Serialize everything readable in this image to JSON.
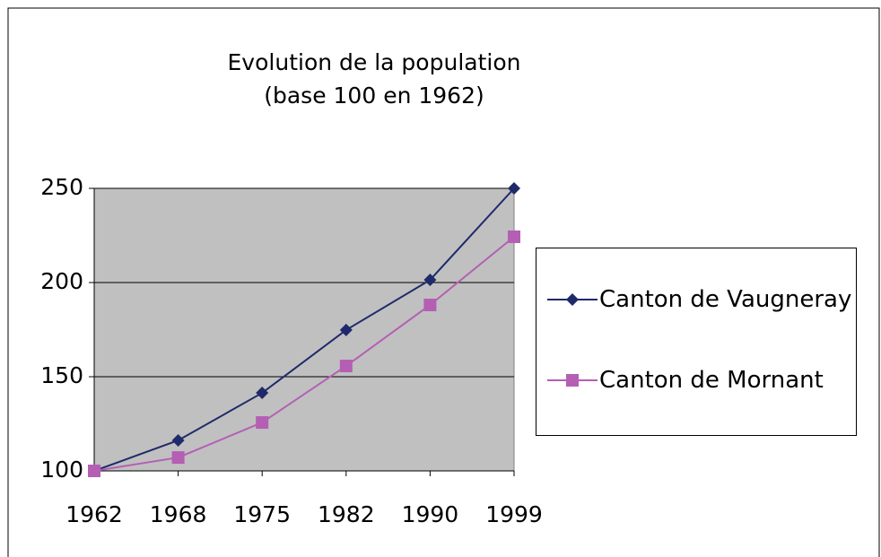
{
  "chart_data": {
    "type": "line",
    "title": "Evolution de la population",
    "subtitle": "(base 100 en 1962)",
    "categories": [
      "1962",
      "1968",
      "1975",
      "1982",
      "1990",
      "1999"
    ],
    "series": [
      {
        "name": "Canton de Vaugneray",
        "color": "#1f2a6b",
        "marker": "diamond",
        "values": [
          100,
          116.2,
          141.4,
          174.8,
          201.4,
          250
        ]
      },
      {
        "name": "Canton de Mornant",
        "color": "#b45fb4",
        "marker": "square",
        "values": [
          100,
          107.1,
          125.7,
          155.7,
          188.1,
          224.3
        ]
      }
    ],
    "ylim": [
      100,
      250
    ],
    "yticks": [
      100,
      150,
      200,
      250
    ],
    "grid": true,
    "legend": "right"
  }
}
